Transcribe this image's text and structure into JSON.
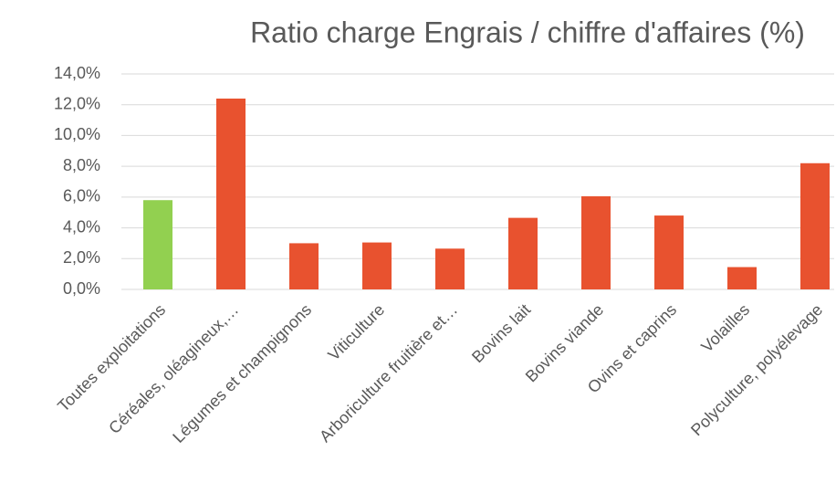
{
  "chart_data": {
    "type": "bar",
    "title": "Ratio charge Engrais / chiffre d'affaires (%)",
    "categories": [
      "Toutes exploitations",
      "Céréales, oléagineux,…",
      "Légumes et champignons",
      "Viticulture",
      "Arboriculture fruitière et…",
      "Bovins lait",
      "Bovins viande",
      "Ovins et caprins",
      "Volailles",
      "Polyculture, polyélevage"
    ],
    "values": [
      5.8,
      12.4,
      3.0,
      3.05,
      2.65,
      4.65,
      6.05,
      4.8,
      1.45,
      8.2
    ],
    "colors": [
      "#92d050",
      "#e8522f",
      "#e8522f",
      "#e8522f",
      "#e8522f",
      "#e8522f",
      "#e8522f",
      "#e8522f",
      "#e8522f",
      "#e8522f"
    ],
    "ylim": [
      0,
      14
    ],
    "yticks": [
      {
        "value": 0,
        "label": "0,0%"
      },
      {
        "value": 2,
        "label": "2,0%"
      },
      {
        "value": 4,
        "label": "4,0%"
      },
      {
        "value": 6,
        "label": "6,0%"
      },
      {
        "value": 8,
        "label": "8,0%"
      },
      {
        "value": 10,
        "label": "10,0%"
      },
      {
        "value": 12,
        "label": "12,0%"
      },
      {
        "value": 14,
        "label": "14,0%"
      }
    ],
    "grid": true
  }
}
